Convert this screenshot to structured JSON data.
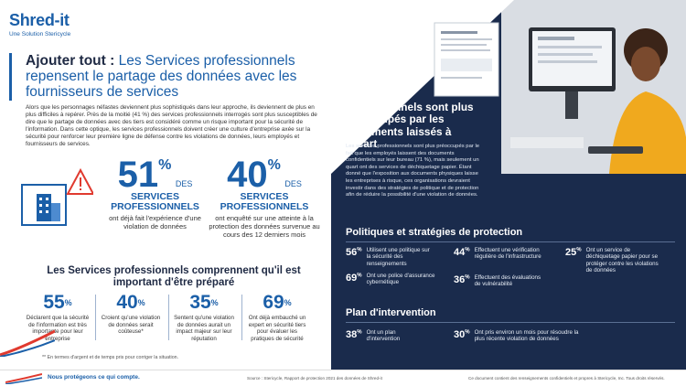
{
  "logo": {
    "brand": "Shred-it",
    "tagline": "Une Solution Stericycle"
  },
  "title": {
    "bold": "Ajouter tout :",
    "rest": " Les Services professionnels repensent le partage des données avec les fournisseurs de services"
  },
  "intro": "Alors que les personnages néfastes deviennent plus sophistiqués dans leur approche, ils deviennent de plus en plus difficiles à repérer. Près de la moitié (41 %) des services professionnels interrogés sont plus susceptibles de dire que le partage de données avec des tiers est considéré comme un risque important pour la sécurité de l'information. Dans cette optique, les services professionnels doivent créer une culture d'entreprise axée sur la sécurité pour renforcer leur première ligne de défense contre les violations de données, leurs employés et fournisseurs de services.",
  "big_stats": [
    {
      "num": "51",
      "pct": "%",
      "des": "DES",
      "label": "SERVICES PROFESSIONNELS",
      "sub": "ont déjà fait l'expérience d'une violation de données"
    },
    {
      "num": "40",
      "pct": "%",
      "des": "DES",
      "label": "SERVICES PROFESSIONNELS",
      "sub": "ont enquêté sur une atteinte à la protection des données survenue au cours des 12 derniers mois"
    }
  ],
  "section_heading": "Les Services professionnels comprennent qu'il est important d'être préparé",
  "small_stats": [
    {
      "num": "55",
      "pct": "%",
      "text": "Déclarent que la sécurité de l'information est très importante pour leur entreprise"
    },
    {
      "num": "40",
      "pct": "%",
      "text": "Croient qu'une violation de données serait coûteuse*"
    },
    {
      "num": "35",
      "pct": "%",
      "text": "Sentent qu'une violation de données aurait un impact majeur sur leur réputation"
    },
    {
      "num": "69",
      "pct": "%",
      "text": "Ont déjà embauché un expert en sécurité tiers pour évaluer les pratiques de sécurité"
    }
  ],
  "footnote": "** En termes d'argent et de temps pris pour corriger la situation.",
  "right": {
    "title": "Les services professionnels sont plus préoccupés par les documents laissés à l'écart",
    "para": "Les services professionnels sont plus préoccupés par le fait que les employés laissent des documents confidentiels sur leur bureau (71 %), mais seulement un quart ont des services de déchiquetage papier. Étant donné que l'exposition aux documents physiques laisse les entreprises à risque, ces organisations devraient investir dans des stratégies de politique et de protection afin de réduire la possibilité d'une violation de données.",
    "policies_heading": "Politiques et stratégies de protection",
    "policies": [
      {
        "num": "56",
        "pct": "%",
        "text": "Utilisent une politique sur la sécurité des renseignements"
      },
      {
        "num": "44",
        "pct": "%",
        "text": "Effectuent une vérification régulière de l'infrastructure"
      },
      {
        "num": "25",
        "pct": "%",
        "text": "Ont un service de déchiquetage papier pour se protéger contre les violations de données"
      },
      {
        "num": "69",
        "pct": "%",
        "text": "Ont une police d'assurance cybernétique"
      },
      {
        "num": "36",
        "pct": "%",
        "text": "Effectuent des évaluations de vulnérabilité"
      }
    ],
    "plan_heading": "Plan d'intervention",
    "plans": [
      {
        "num": "38",
        "pct": "%",
        "text": "Ont un plan d'intervention"
      },
      {
        "num": "30",
        "pct": "%",
        "text": "Ont pris environ un mois pour résoudre la plus récente violation de données"
      }
    ]
  },
  "bottom": {
    "tagline": "Nous protégeons ce qui compte.",
    "source": "Source : Stericycle, Rapport de protection 2021 des données de Shred-it",
    "confidential": "Ce document contient des renseignements confidentiels et propres à Stericycle, Inc. Tous droits réservés."
  },
  "colors": {
    "navy": "#1a2b4c",
    "blue": "#1b5fa8",
    "red": "#e03a2f",
    "orange": "#f08a24"
  }
}
